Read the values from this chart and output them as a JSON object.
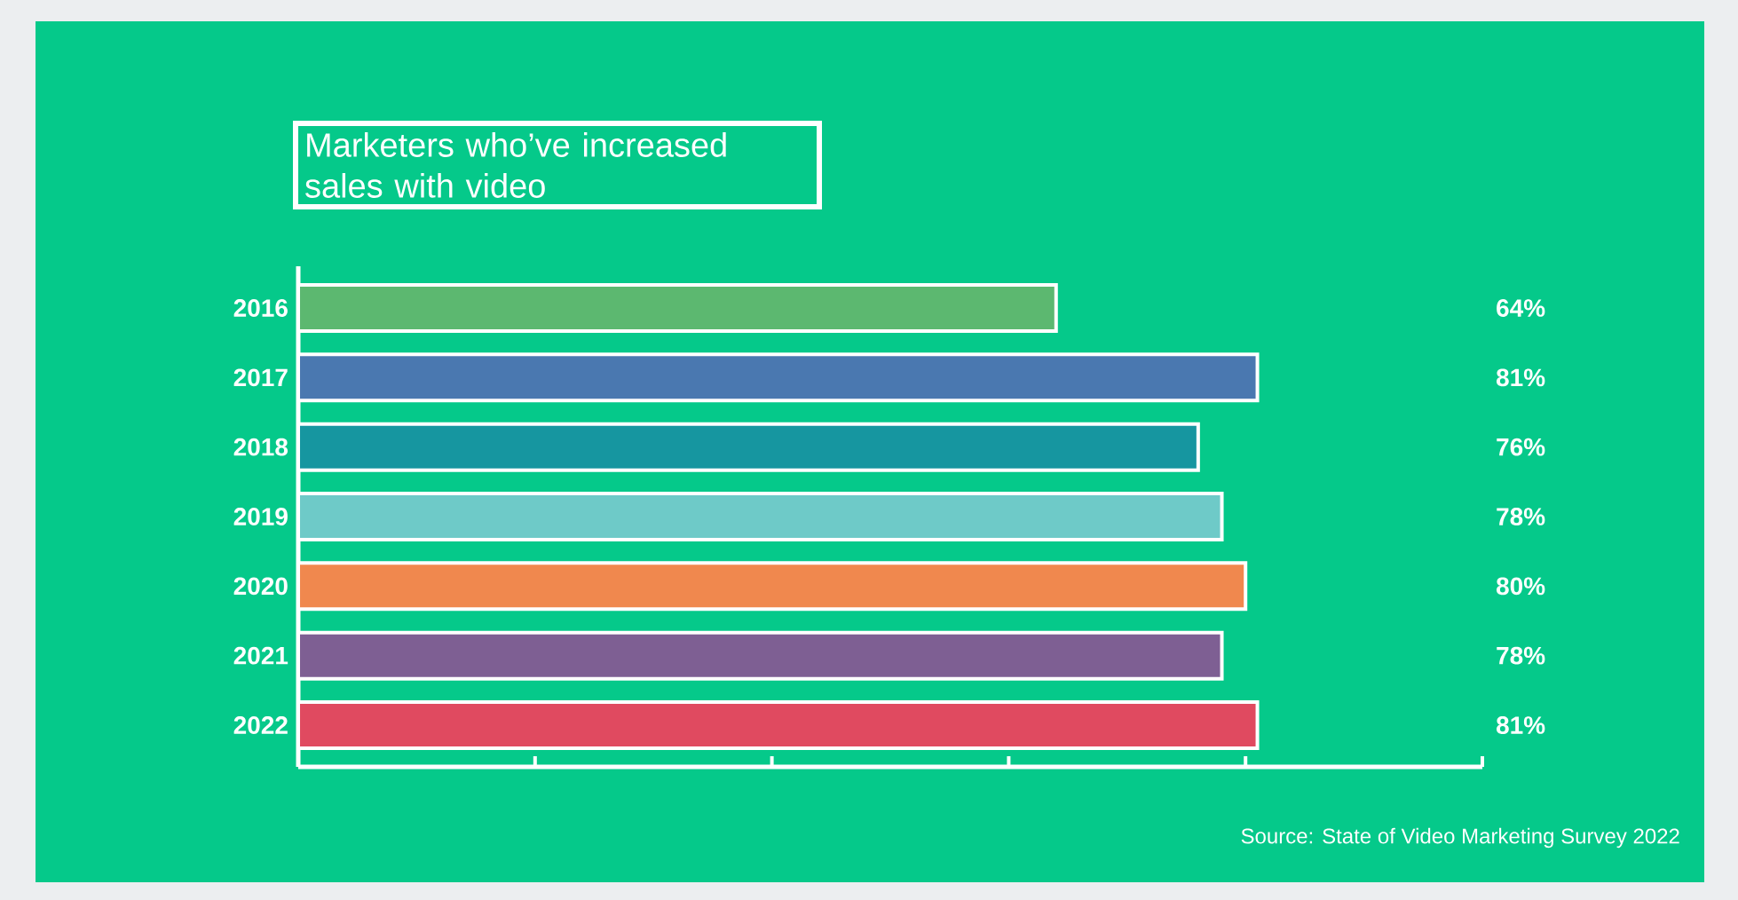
{
  "chart_data": {
    "type": "bar",
    "orientation": "horizontal",
    "title": "Marketers who’ve increased sales with video",
    "categories": [
      "2016",
      "2017",
      "2018",
      "2019",
      "2020",
      "2021",
      "2022"
    ],
    "values": [
      64,
      81,
      76,
      78,
      80,
      78,
      81
    ],
    "colors": [
      "#5cb870",
      "#4a78b0",
      "#1696a0",
      "#6ecac8",
      "#f0884e",
      "#7e5f93",
      "#e04a60"
    ],
    "value_labels": [
      "64%",
      "81%",
      "76%",
      "78%",
      "80%",
      "78%",
      "81%"
    ],
    "xlim": [
      0,
      100
    ],
    "xticks": [
      {
        "value": 0,
        "label": null
      },
      {
        "value": 20,
        "label": null
      },
      {
        "value": 40,
        "label": null
      },
      {
        "value": 60,
        "label": null
      },
      {
        "value": 80,
        "label": null
      },
      {
        "value": 100,
        "label": null
      }
    ],
    "annotations": [
      "Source: State of Video Marketing Survey 2022"
    ]
  }
}
